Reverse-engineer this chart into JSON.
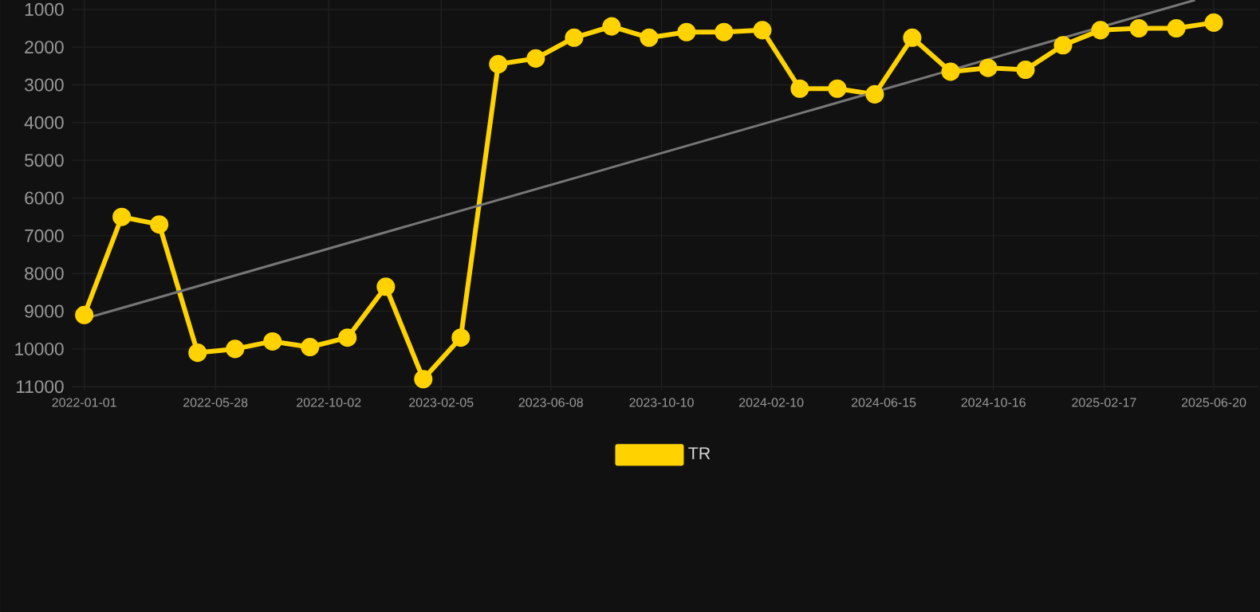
{
  "chart_data": {
    "type": "line",
    "xlim": [
      "2021-12-18",
      "2025-08-09"
    ],
    "xticks": [
      "2022-01-01",
      "2022-05-28",
      "2022-10-02",
      "2023-02-05",
      "2023-06-08",
      "2023-10-10",
      "2024-02-10",
      "2024-06-15",
      "2024-10-16",
      "2025-02-17",
      "2025-06-20"
    ],
    "ylim": [
      11100,
      750
    ],
    "yticks": [
      1000,
      2000,
      3000,
      4000,
      5000,
      6000,
      7000,
      8000,
      9000,
      10000,
      11000
    ],
    "grid": true,
    "legend": "bottom",
    "series": [
      {
        "name": "TR",
        "color": "#ffd200",
        "marker": "circle",
        "x": [
          "2022-01-01",
          "2022-02-12",
          "2022-03-26",
          "2022-05-08",
          "2022-06-19",
          "2022-07-31",
          "2022-09-11",
          "2022-10-23",
          "2022-12-05",
          "2023-01-16",
          "2023-02-27",
          "2023-04-10",
          "2023-05-22",
          "2023-07-04",
          "2023-08-15",
          "2023-09-26",
          "2023-11-07",
          "2023-12-19",
          "2024-01-31",
          "2024-03-13",
          "2024-04-24",
          "2024-06-05",
          "2024-07-17",
          "2024-08-29",
          "2024-10-10",
          "2024-11-21",
          "2025-01-02",
          "2025-02-13",
          "2025-03-28",
          "2025-05-09",
          "2025-06-20"
        ],
        "values": [
          9100,
          6500,
          6700,
          10100,
          10000,
          9800,
          9950,
          9700,
          8350,
          10800,
          9700,
          2450,
          2300,
          1750,
          1450,
          1750,
          1600,
          1600,
          1550,
          3100,
          3100,
          3250,
          1750,
          2650,
          2550,
          2600,
          1950,
          1550,
          1500,
          1500,
          1350
        ]
      },
      {
        "type": "line",
        "color": "#777777",
        "marker": "none",
        "x": [
          "2022-01-01",
          "2025-05-30"
        ],
        "values": [
          9200,
          750
        ]
      }
    ]
  }
}
